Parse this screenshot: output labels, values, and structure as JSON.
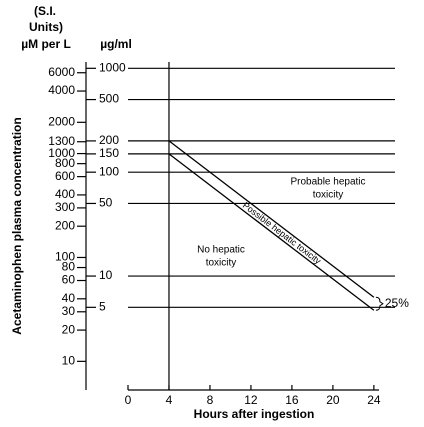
{
  "chart_data": {
    "type": "line",
    "header": [
      "(S.I.",
      "Units)"
    ],
    "y2_units": "µM per L",
    "y_units": "µg/ml",
    "y_label": "Acetaminophen plasma concentration",
    "x_label": "Hours after ingestion",
    "xlim": [
      0,
      24.5
    ],
    "xticks": [
      0,
      4,
      8,
      12,
      16,
      20,
      24
    ],
    "ylog": true,
    "ylim": [
      0.8,
      1150
    ],
    "yticks": [
      1000,
      500,
      200,
      150,
      100,
      50,
      10,
      5
    ],
    "y2lim": [
      5.3,
      7613
    ],
    "y2ticks": [
      6000,
      4000,
      2000,
      1300,
      1000,
      800,
      600,
      400,
      300,
      200,
      100,
      80,
      60,
      40,
      30,
      20,
      10
    ],
    "grid": true,
    "vlines": [
      4
    ],
    "x": [
      4,
      24
    ],
    "series": [
      {
        "color": "#000000",
        "values": [
          200,
          6.25
        ]
      },
      {
        "color": "#000000",
        "values": [
          150,
          4.69
        ]
      }
    ],
    "annotations": {
      "probable": [
        "Probable hepatic",
        "toxicity"
      ],
      "none": [
        "No hepatic",
        "toxicity"
      ],
      "band": "Possible hepatic toxicity",
      "bracket": "25%"
    }
  }
}
